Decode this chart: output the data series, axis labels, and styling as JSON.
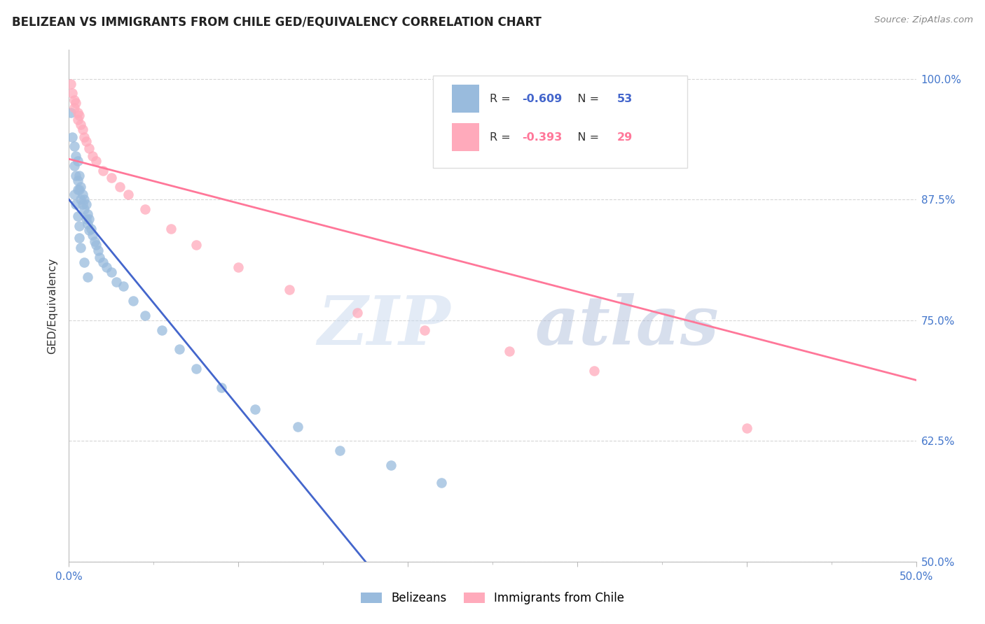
{
  "title": "BELIZEAN VS IMMIGRANTS FROM CHILE GED/EQUIVALENCY CORRELATION CHART",
  "source": "Source: ZipAtlas.com",
  "xlabel_ticks": [
    0.0,
    0.1,
    0.2,
    0.3,
    0.4,
    0.5
  ],
  "xlabel_labels": [
    "0.0%",
    "",
    "",
    "",
    "",
    "50.0%"
  ],
  "ylabel_ticks": [
    0.5,
    0.625,
    0.75,
    0.875,
    1.0
  ],
  "ylabel_labels": [
    "50.0%",
    "62.5%",
    "75.0%",
    "87.5%",
    "100.0%"
  ],
  "blue_R": -0.609,
  "blue_N": 53,
  "pink_R": -0.393,
  "pink_N": 29,
  "blue_label": "Belizeans",
  "pink_label": "Immigrants from Chile",
  "blue_color": "#99BBDD",
  "pink_color": "#FFAABB",
  "blue_line_color": "#4466CC",
  "pink_line_color": "#FF7799",
  "watermark_zip": "ZIP",
  "watermark_atlas": "atlas",
  "watermark_color_zip": "#BBCCEE",
  "watermark_color_atlas": "#BBCCEE",
  "blue_points_x": [
    0.001,
    0.002,
    0.003,
    0.003,
    0.004,
    0.004,
    0.005,
    0.005,
    0.005,
    0.006,
    0.006,
    0.007,
    0.007,
    0.008,
    0.008,
    0.009,
    0.009,
    0.01,
    0.01,
    0.011,
    0.011,
    0.012,
    0.012,
    0.013,
    0.014,
    0.015,
    0.016,
    0.017,
    0.018,
    0.02,
    0.022,
    0.025,
    0.028,
    0.032,
    0.038,
    0.045,
    0.055,
    0.065,
    0.075,
    0.09,
    0.11,
    0.135,
    0.16,
    0.19,
    0.22,
    0.003,
    0.004,
    0.005,
    0.006,
    0.006,
    0.007,
    0.009,
    0.011
  ],
  "blue_points_y": [
    0.965,
    0.94,
    0.93,
    0.91,
    0.92,
    0.9,
    0.915,
    0.895,
    0.885,
    0.9,
    0.885,
    0.888,
    0.875,
    0.88,
    0.87,
    0.875,
    0.865,
    0.87,
    0.855,
    0.86,
    0.85,
    0.855,
    0.843,
    0.845,
    0.838,
    0.832,
    0.828,
    0.822,
    0.815,
    0.81,
    0.805,
    0.8,
    0.79,
    0.785,
    0.77,
    0.755,
    0.74,
    0.72,
    0.7,
    0.68,
    0.658,
    0.64,
    0.615,
    0.6,
    0.582,
    0.88,
    0.87,
    0.858,
    0.848,
    0.835,
    0.825,
    0.81,
    0.795
  ],
  "pink_points_x": [
    0.001,
    0.002,
    0.003,
    0.003,
    0.004,
    0.005,
    0.005,
    0.006,
    0.007,
    0.008,
    0.009,
    0.01,
    0.012,
    0.014,
    0.016,
    0.02,
    0.025,
    0.03,
    0.035,
    0.045,
    0.06,
    0.075,
    0.1,
    0.13,
    0.17,
    0.21,
    0.26,
    0.31,
    0.4
  ],
  "pink_points_y": [
    0.995,
    0.985,
    0.978,
    0.97,
    0.975,
    0.965,
    0.958,
    0.962,
    0.953,
    0.948,
    0.94,
    0.935,
    0.928,
    0.92,
    0.915,
    0.905,
    0.898,
    0.888,
    0.88,
    0.865,
    0.845,
    0.828,
    0.805,
    0.782,
    0.758,
    0.74,
    0.718,
    0.698,
    0.638
  ],
  "blue_line_x0": 0.0,
  "blue_line_y0": 0.875,
  "blue_line_x1": 0.175,
  "blue_line_y1": 0.5,
  "pink_line_x0": 0.0,
  "pink_line_y0": 0.917,
  "pink_line_x1": 0.5,
  "pink_line_y1": 0.688,
  "xlim": [
    0.0,
    0.5
  ],
  "ylim": [
    0.5,
    1.03
  ],
  "figwidth": 14.06,
  "figheight": 8.92,
  "dpi": 100
}
